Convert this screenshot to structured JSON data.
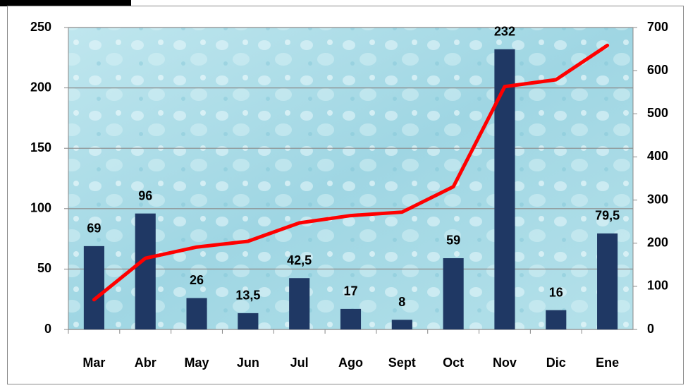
{
  "chart_data": {
    "type": "combo",
    "categories": [
      "Mar",
      "Abr",
      "May",
      "Jun",
      "Jul",
      "Ago",
      "Sept",
      "Oct",
      "Nov",
      "Dic",
      "Ene"
    ],
    "series": [
      {
        "type": "bar",
        "color": "#1f3864",
        "values": [
          69,
          96,
          26,
          13.5,
          42.5,
          17,
          8,
          59,
          232,
          16,
          79.5
        ],
        "value_labels": [
          "69",
          "96",
          "26",
          "13,5",
          "42,5",
          "17",
          "8",
          "59",
          "232",
          "16",
          "79,5"
        ]
      },
      {
        "type": "line",
        "color": "#ff0000",
        "axis": "y2",
        "values": [
          69,
          165,
          191,
          204.5,
          247,
          264,
          272,
          331,
          563,
          579,
          658.5
        ]
      }
    ],
    "ylim": [
      0,
      250
    ],
    "yticks": [
      0,
      50,
      100,
      150,
      200,
      250
    ],
    "y2lim": [
      0,
      700
    ],
    "y2ticks": [
      0,
      100,
      200,
      300,
      400,
      500,
      600,
      700
    ],
    "grid": true
  }
}
